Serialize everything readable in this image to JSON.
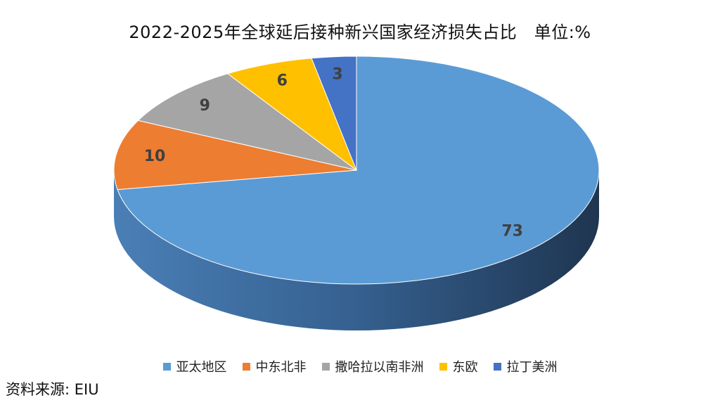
{
  "chart_data": {
    "type": "pie",
    "title": "2022-2025年全球延后接种新兴国家经济损失占比　单位:%",
    "categories": [
      "亚太地区",
      "中东北非",
      "撒哈拉以南非洲",
      "东欧",
      "拉丁美洲"
    ],
    "values": [
      73,
      10,
      9,
      6,
      3
    ],
    "colors": [
      "#5B9BD5",
      "#ED7D31",
      "#A5A5A5",
      "#FFC000",
      "#4472C4"
    ],
    "style": "3d",
    "legend_position": "bottom"
  },
  "source": "资料来源: EIU"
}
